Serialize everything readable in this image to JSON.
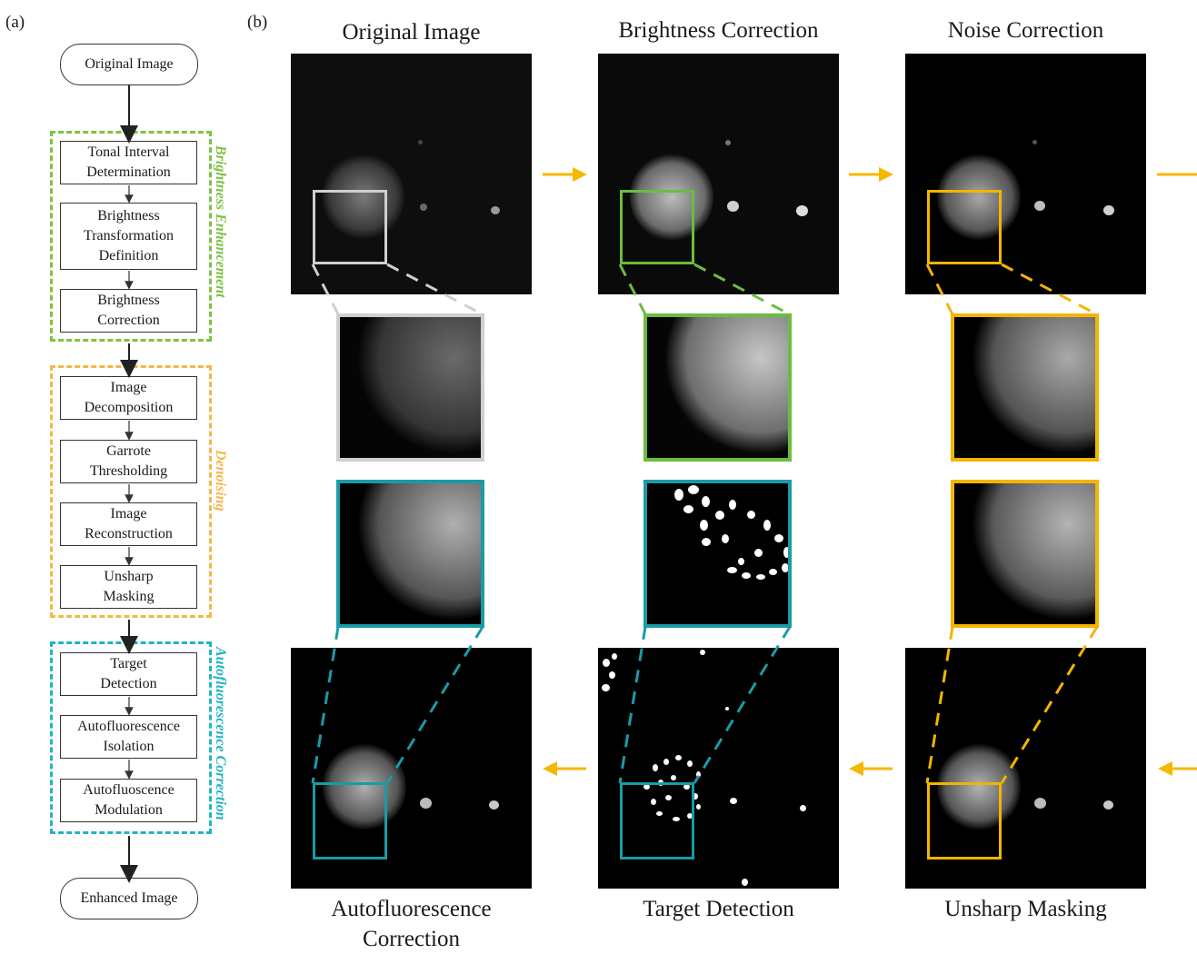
{
  "panels": {
    "a": "(a)",
    "b": "(b)"
  },
  "flowchart": {
    "start": "Original Image",
    "end": "Enhanced Image",
    "groups": [
      {
        "label": "Brightness Enhancement",
        "color": "#7dc242",
        "steps": [
          "Tonal Interval\nDetermination",
          "Brightness\nTransformation\nDefinition",
          "Brightness\nCorrection"
        ]
      },
      {
        "label": "Denoising",
        "color": "#f5b64a",
        "steps": [
          "Image\nDecomposition",
          "Garrote\nThresholding",
          "Image\nReconstruction",
          "Unsharp\nMasking"
        ]
      },
      {
        "label": "Autofluorescence Correction",
        "color": "#1fb5c1",
        "steps": [
          "Target\nDetection",
          "Autofluorescence\nIsolation",
          "Autofluoscence\nModulation"
        ]
      }
    ]
  },
  "columns": {
    "top_titles": [
      "Original Image",
      "Brightness Correction",
      "Noise Correction"
    ],
    "bottom_captions": [
      "Autofluorescence\nCorrection",
      "Target Detection",
      "Unsharp Masking"
    ]
  },
  "colors": {
    "original": "#cfcfcf",
    "brightness": "#6cbd3e",
    "noise": "#f3b500",
    "autofluorescence": "#1a9ba6",
    "arrow": "#f5b800"
  },
  "icons": {
    "flow_arrow": "arrow-right-icon",
    "return_arrow": "arrow-left-icon"
  }
}
